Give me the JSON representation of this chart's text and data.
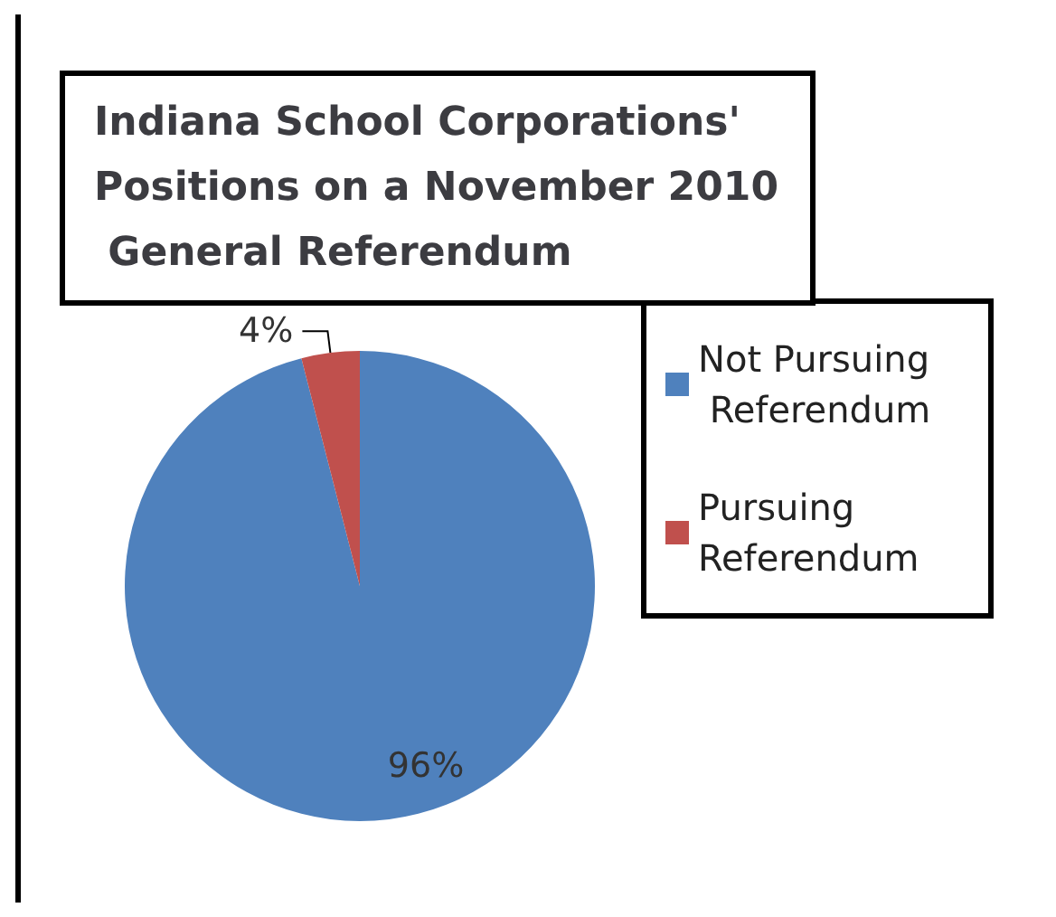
{
  "chart_data": {
    "type": "pie",
    "title": "Indiana School Corporations' Positions on a November 2010 General Referendum",
    "categories": [
      "Not Pursuing Referendum",
      "Pursuing Referendum"
    ],
    "values": [
      96,
      4
    ],
    "colors": [
      "#4f81bd",
      "#c0504d"
    ],
    "value_labels": [
      "96%",
      "4%"
    ],
    "legend": "right"
  }
}
